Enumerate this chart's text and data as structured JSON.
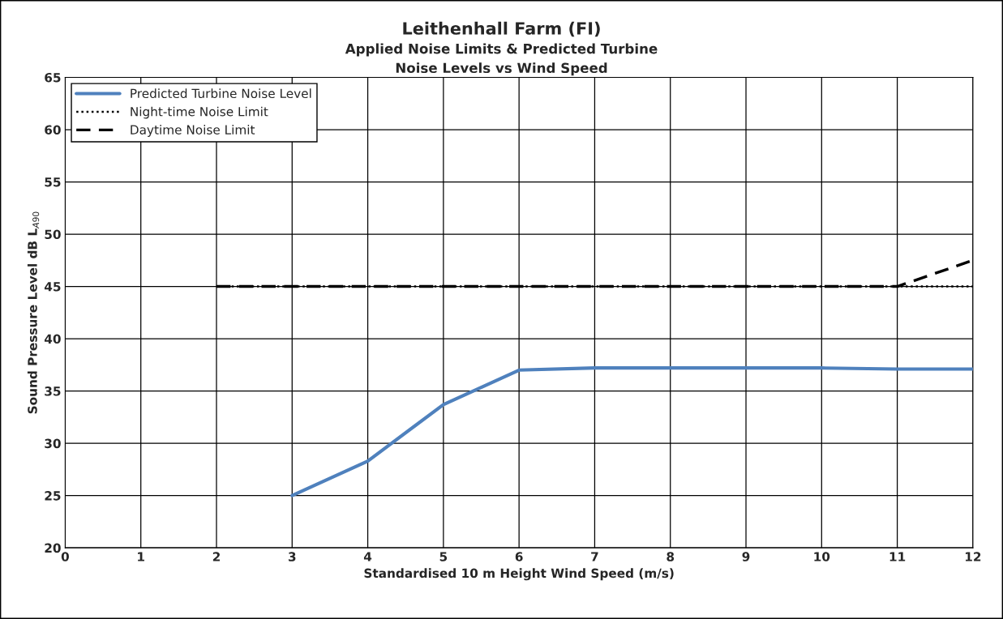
{
  "chart_data": {
    "type": "line",
    "title": "Leithenhall Farm (FI)",
    "subtitle": "Applied Noise Limits & Predicted Turbine\nNoise Levels vs Wind Speed",
    "xlabel": "Standardised 10 m Height Wind Speed (m/s)",
    "ylabel": "Sound Pressure Level dB L$_{A90}$",
    "series": [
      {
        "name": "Predicted Turbine Noise Level",
        "color": "#4f81bd",
        "line_style": "solid",
        "x": [
          3,
          4,
          5,
          6,
          7,
          8,
          9,
          10,
          11,
          12
        ],
        "values": [
          25,
          28.3,
          33.7,
          37.0,
          37.2,
          37.2,
          37.2,
          37.2,
          37.1,
          37.1
        ]
      },
      {
        "name": "Night-time Noise Limit",
        "color": "#000000",
        "line_style": "dotted",
        "x": [
          2,
          3,
          4,
          5,
          6,
          7,
          8,
          9,
          10,
          11,
          12
        ],
        "values": [
          45,
          45,
          45,
          45,
          45,
          45,
          45,
          45,
          45,
          45,
          45
        ]
      },
      {
        "name": "Daytime Noise Limit",
        "color": "#000000",
        "line_style": "dashed",
        "x": [
          2,
          3,
          4,
          5,
          6,
          7,
          8,
          9,
          10,
          11,
          12
        ],
        "values": [
          45,
          45,
          45,
          45,
          45,
          45,
          45,
          45,
          45,
          45,
          47.5
        ]
      }
    ],
    "xlim": [
      0,
      12
    ],
    "xticks": [
      0,
      1,
      2,
      3,
      4,
      5,
      6,
      7,
      8,
      9,
      10,
      11,
      12
    ],
    "ylim": [
      20,
      65
    ],
    "yticks": [
      20,
      25,
      30,
      35,
      40,
      45,
      50,
      55,
      60,
      65
    ],
    "grid": true,
    "legend": "top left",
    "marker": "none"
  }
}
